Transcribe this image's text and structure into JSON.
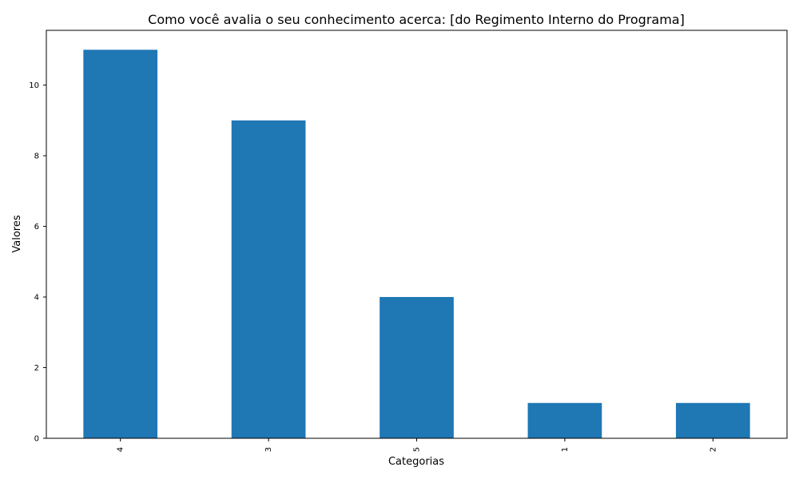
{
  "chart_data": {
    "type": "bar",
    "title": "Como você avalia o seu conhecimento acerca: [do Regimento Interno do Programa]",
    "xlabel": "Categorias",
    "ylabel": "Valores",
    "categories": [
      "4",
      "3",
      "5",
      "1",
      "2"
    ],
    "values": [
      11,
      9,
      4,
      1,
      1
    ],
    "ylim": [
      0,
      11.55
    ],
    "yticks": [
      0,
      2,
      4,
      6,
      8,
      10
    ],
    "bar_color": "#1f77b4",
    "grid": false,
    "legend": "none",
    "xtick_rotation": "vertical"
  }
}
